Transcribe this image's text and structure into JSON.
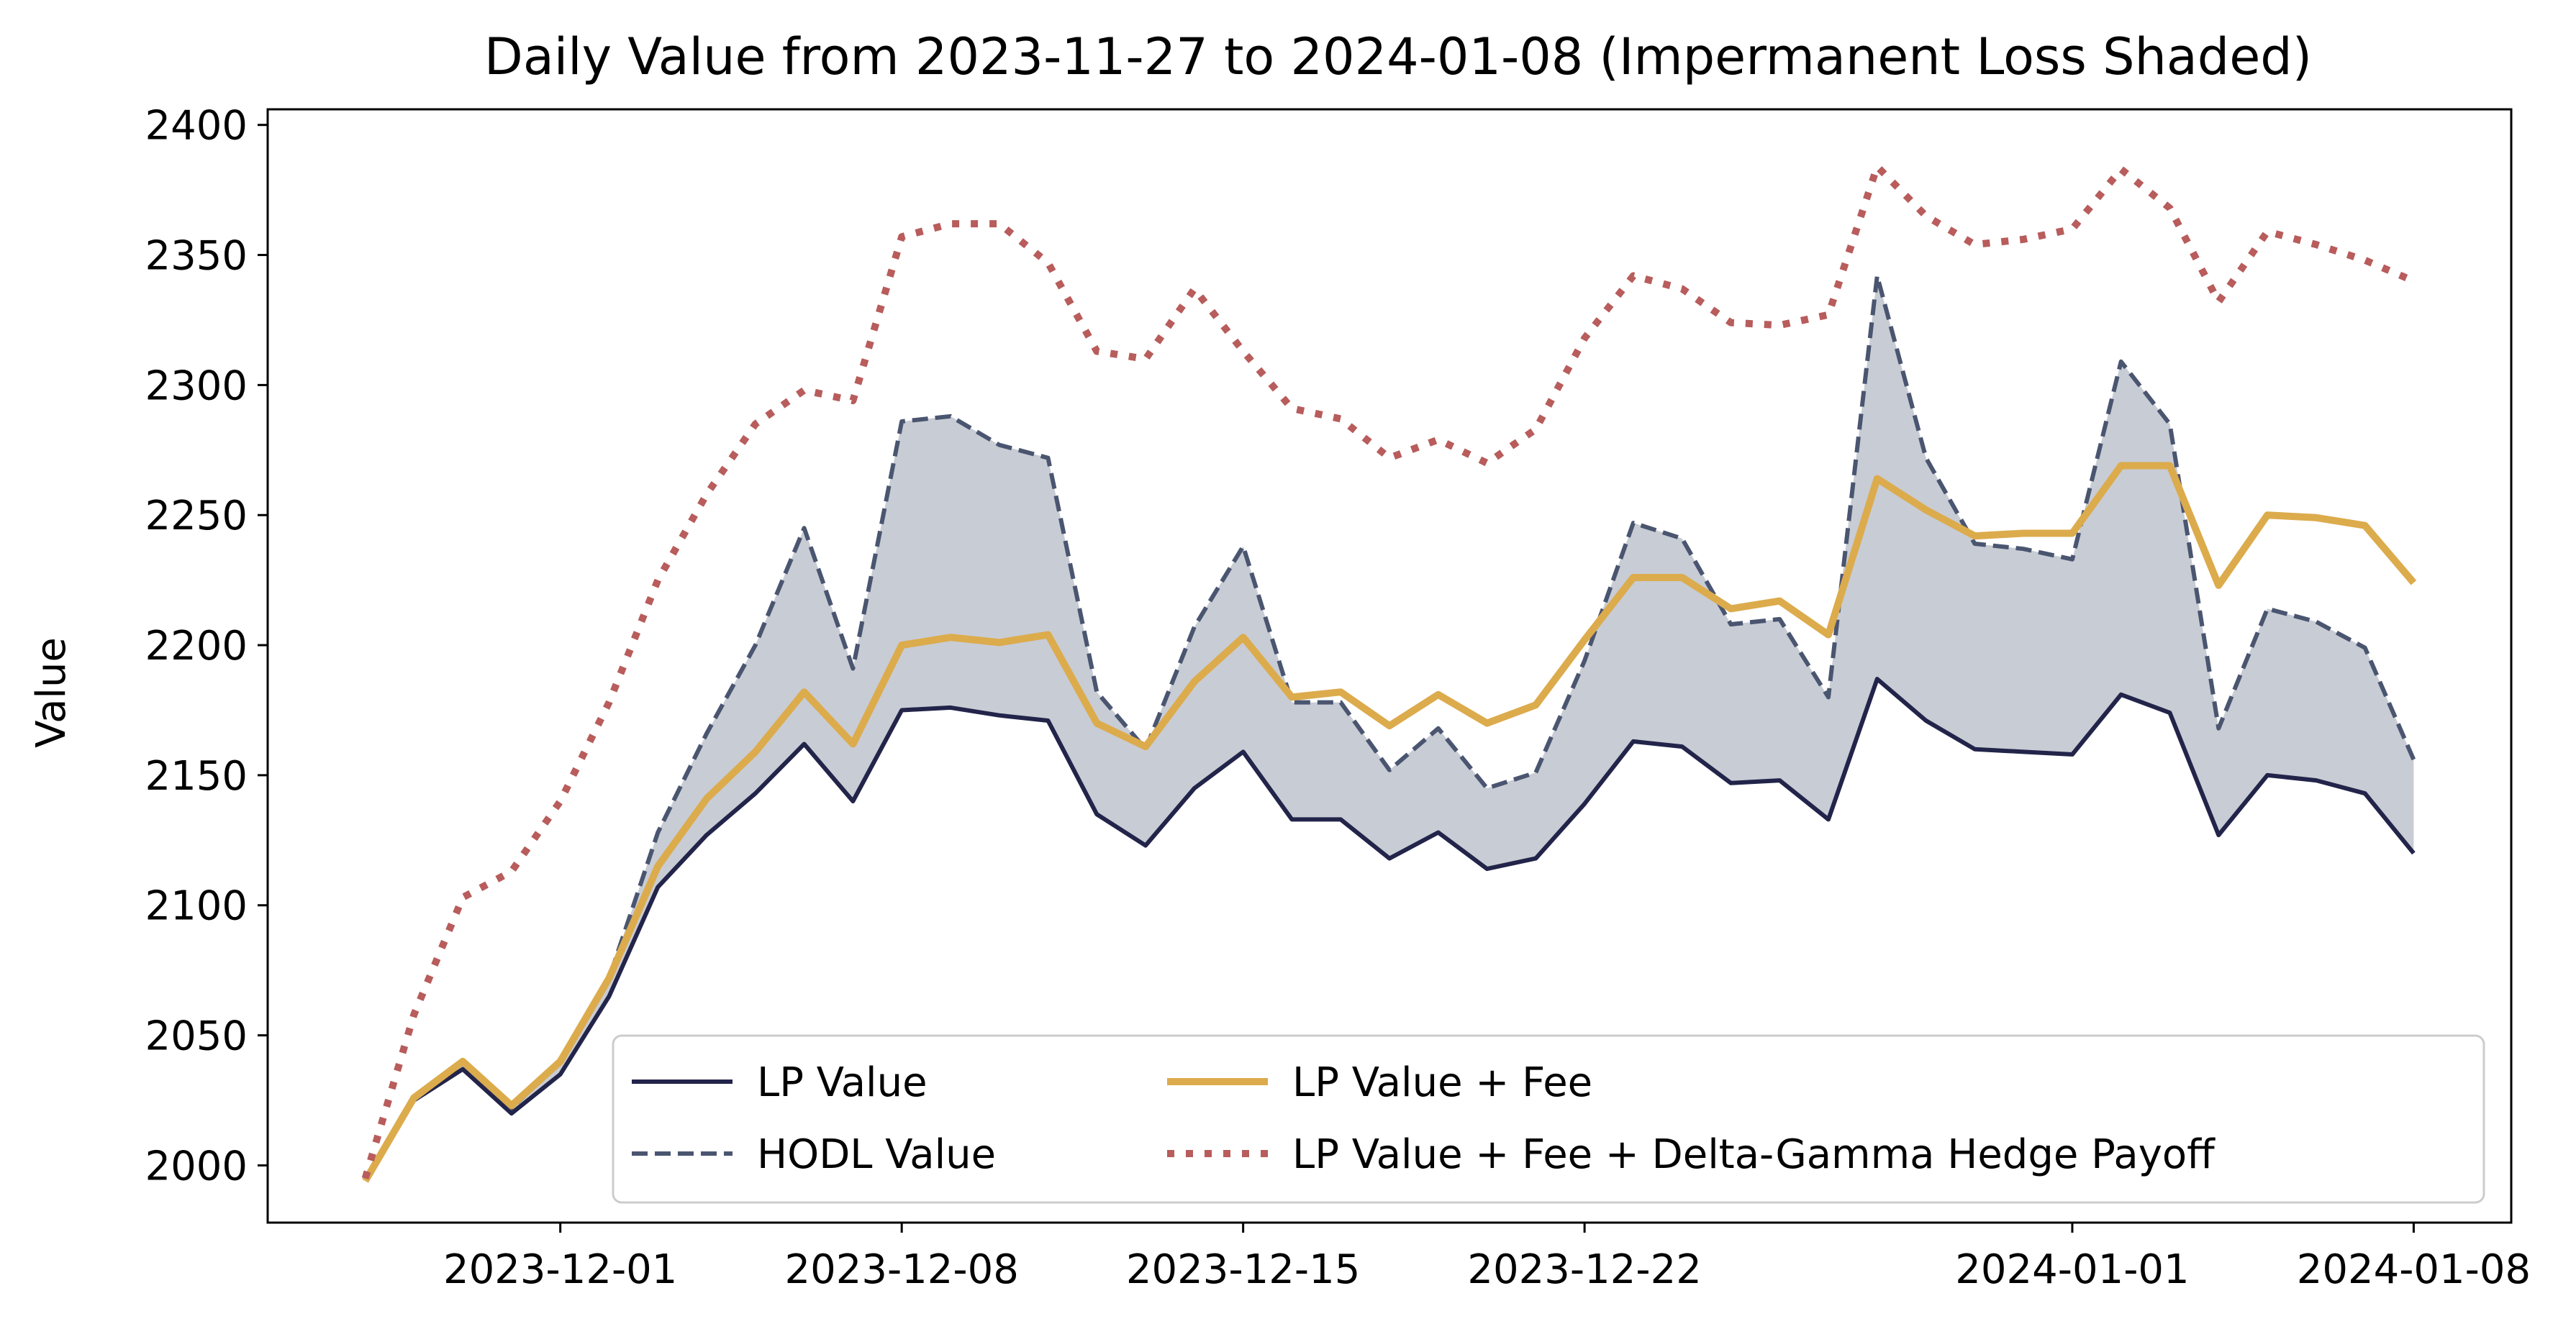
{
  "chart_data": {
    "type": "line",
    "title": "Daily Value from 2023-11-27 to 2024-01-08 (Impermanent Loss Shaded)",
    "xlabel": "",
    "ylabel": "Value",
    "xlim": [
      "2023-11-25",
      "2024-01-10"
    ],
    "ylim": [
      1978,
      2406
    ],
    "grid": false,
    "legend_position": "lower right",
    "x_ticks": [
      "2023-12-01",
      "2023-12-08",
      "2023-12-15",
      "2023-12-22",
      "2024-01-01",
      "2024-01-08"
    ],
    "y_ticks": [
      2000,
      2050,
      2100,
      2150,
      2200,
      2250,
      2300,
      2350,
      2400
    ],
    "x": [
      "2023-11-27",
      "2023-11-28",
      "2023-11-29",
      "2023-11-30",
      "2023-12-01",
      "2023-12-02",
      "2023-12-03",
      "2023-12-04",
      "2023-12-05",
      "2023-12-06",
      "2023-12-07",
      "2023-12-08",
      "2023-12-09",
      "2023-12-10",
      "2023-12-11",
      "2023-12-12",
      "2023-12-13",
      "2023-12-14",
      "2023-12-15",
      "2023-12-16",
      "2023-12-17",
      "2023-12-18",
      "2023-12-19",
      "2023-12-20",
      "2023-12-21",
      "2023-12-22",
      "2023-12-23",
      "2023-12-24",
      "2023-12-25",
      "2023-12-26",
      "2023-12-27",
      "2023-12-28",
      "2023-12-29",
      "2023-12-30",
      "2023-12-31",
      "2024-01-01",
      "2024-01-02",
      "2024-01-03",
      "2024-01-04",
      "2024-01-05",
      "2024-01-06",
      "2024-01-07",
      "2024-01-08"
    ],
    "series": [
      {
        "name": "LP Value",
        "color": "#22244a",
        "style": "solid",
        "values": [
          1995,
          2025,
          2037,
          2020,
          2035,
          2065,
          2107,
          2127,
          2143,
          2162,
          2140,
          2175,
          2176,
          2173,
          2171,
          2135,
          2123,
          2145,
          2159,
          2133,
          2133,
          2118,
          2128,
          2114,
          2118,
          2139,
          2163,
          2161,
          2147,
          2148,
          2133,
          2187,
          2171,
          2160,
          2159,
          2158,
          2181,
          2174,
          2127,
          2150,
          2148,
          2143,
          2120
        ]
      },
      {
        "name": "HODL Value",
        "color": "#4a5570",
        "style": "dashed",
        "values": [
          1995,
          2025,
          2040,
          2022,
          2040,
          2072,
          2128,
          2166,
          2200,
          2245,
          2191,
          2286,
          2288,
          2277,
          2272,
          2182,
          2160,
          2207,
          2238,
          2178,
          2178,
          2152,
          2168,
          2145,
          2151,
          2194,
          2247,
          2241,
          2208,
          2210,
          2180,
          2342,
          2272,
          2239,
          2237,
          2233,
          2309,
          2285,
          2168,
          2214,
          2209,
          2199,
          2156
        ]
      },
      {
        "name": "LP Value + Fee",
        "color": "#dcab4c",
        "style": "solid-thick",
        "values": [
          1994,
          2026,
          2040,
          2023,
          2040,
          2072,
          2115,
          2141,
          2159,
          2182,
          2162,
          2200,
          2203,
          2201,
          2204,
          2170,
          2161,
          2186,
          2203,
          2180,
          2182,
          2169,
          2181,
          2170,
          2177,
          2202,
          2226,
          2226,
          2214,
          2217,
          2204,
          2264,
          2252,
          2242,
          2243,
          2243,
          2269,
          2269,
          2223,
          2250,
          2249,
          2246,
          2224
        ]
      },
      {
        "name": "LP Value + Fee + Delta-Gamma Hedge Payoff",
        "color": "#b85c5c",
        "style": "dotted",
        "values": [
          1995,
          2058,
          2103,
          2113,
          2140,
          2178,
          2225,
          2258,
          2285,
          2298,
          2294,
          2357,
          2362,
          2362,
          2347,
          2313,
          2310,
          2337,
          2313,
          2291,
          2287,
          2272,
          2279,
          2270,
          2283,
          2318,
          2342,
          2337,
          2324,
          2323,
          2327,
          2384,
          2365,
          2354,
          2356,
          2360,
          2383,
          2368,
          2332,
          2359,
          2354,
          2348,
          2340
        ]
      }
    ],
    "shaded_region": {
      "between": [
        "LP Value",
        "HODL Value"
      ],
      "label": "Impermanent Loss",
      "color": "#c8ccd4"
    }
  }
}
